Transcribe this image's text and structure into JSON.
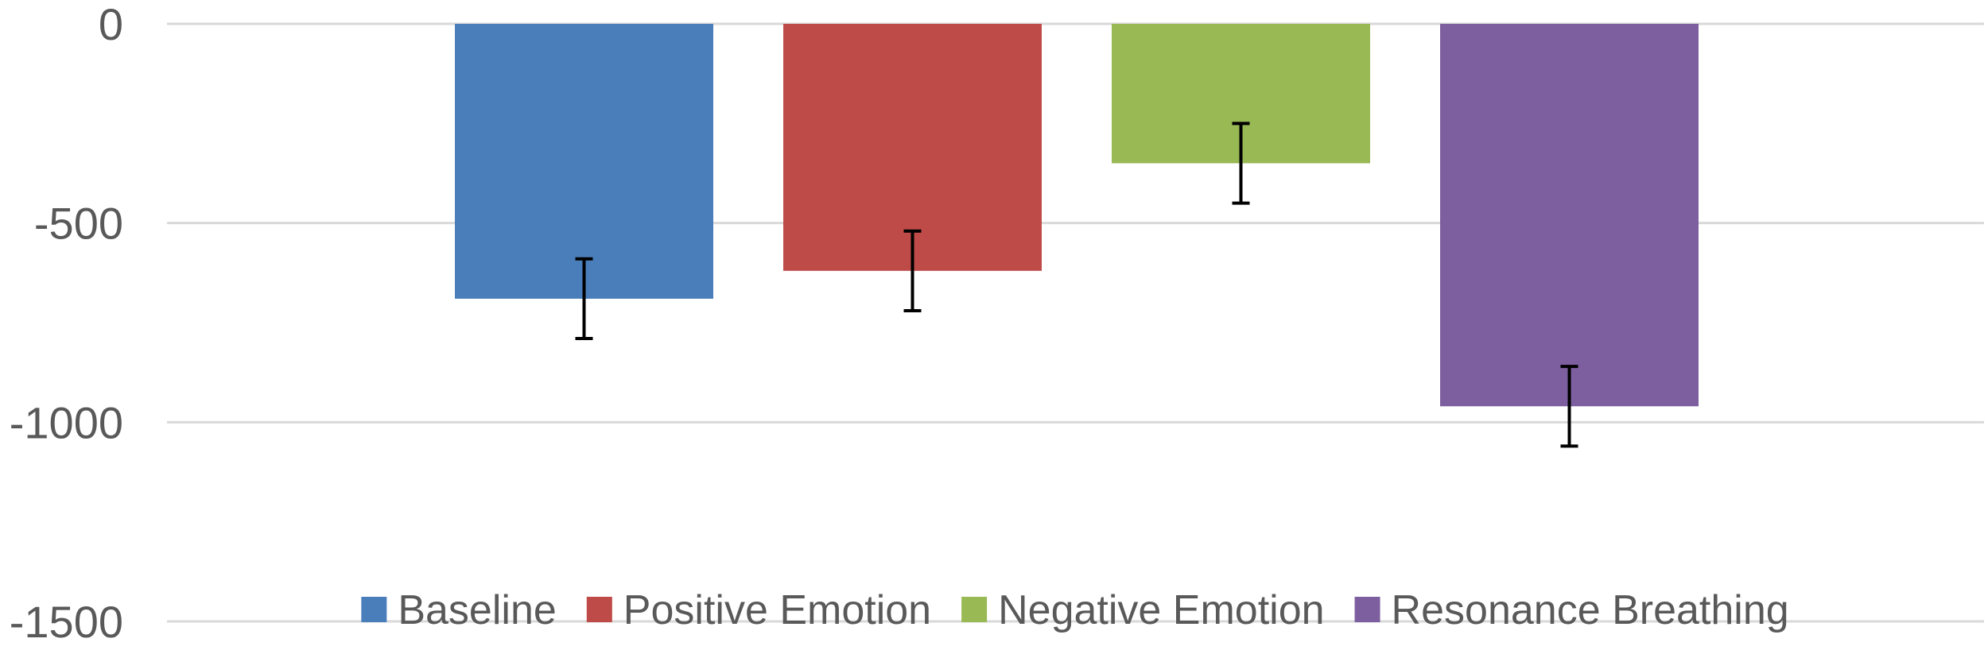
{
  "chart_data": {
    "type": "bar",
    "title": "",
    "xlabel": "",
    "ylabel": "",
    "ylim": [
      -1500,
      0
    ],
    "yticks": [
      0,
      -500,
      -1000,
      -1500
    ],
    "grid": true,
    "legend_position": "bottom",
    "series": [
      {
        "name": "Baseline",
        "value": -690,
        "error": 100,
        "color": "#4a7ebb"
      },
      {
        "name": "Positive Emotion",
        "value": -620,
        "error": 100,
        "color": "#be4b48"
      },
      {
        "name": "Negative Emotion",
        "value": -350,
        "error": 100,
        "color": "#98b954"
      },
      {
        "name": "Resonance Breathing",
        "value": -960,
        "error": 100,
        "color": "#7d5fa0"
      }
    ]
  }
}
